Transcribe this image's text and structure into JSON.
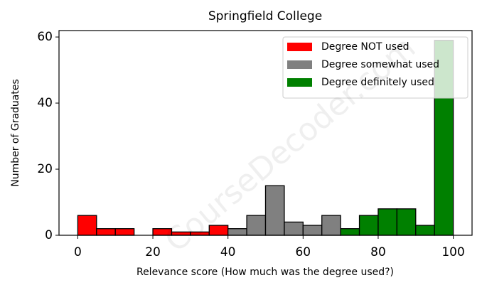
{
  "chart_data": {
    "type": "histogram",
    "title": "Springfield College",
    "xlabel": "Relevance score (How much was the degree used?)",
    "ylabel": "Number of Graduates",
    "watermark": "CourseDecoder.com",
    "series": [
      {
        "name": "Degree NOT used",
        "color": "#ff0000",
        "bins": [
          0,
          5,
          10,
          15,
          20,
          25,
          30,
          35,
          40
        ],
        "values": [
          6,
          2,
          2,
          0,
          2,
          1,
          1,
          3
        ]
      },
      {
        "name": "Degree somewhat used",
        "color": "#808080",
        "bins": [
          40,
          45,
          50,
          55,
          60,
          65,
          70
        ],
        "values": [
          2,
          6,
          15,
          4,
          3,
          6
        ]
      },
      {
        "name": "Degree definitely used",
        "color": "#008000",
        "bins": [
          70,
          75,
          80,
          85,
          90,
          95,
          100
        ],
        "values": [
          2,
          6,
          8,
          8,
          3,
          59
        ]
      }
    ],
    "xlim": [
      -5,
      105
    ],
    "xticks": [
      0,
      20,
      40,
      60,
      80,
      100
    ],
    "ylim": [
      0,
      61.95
    ],
    "yticks": [
      0,
      20,
      40,
      60
    ],
    "legend": "upper right"
  }
}
